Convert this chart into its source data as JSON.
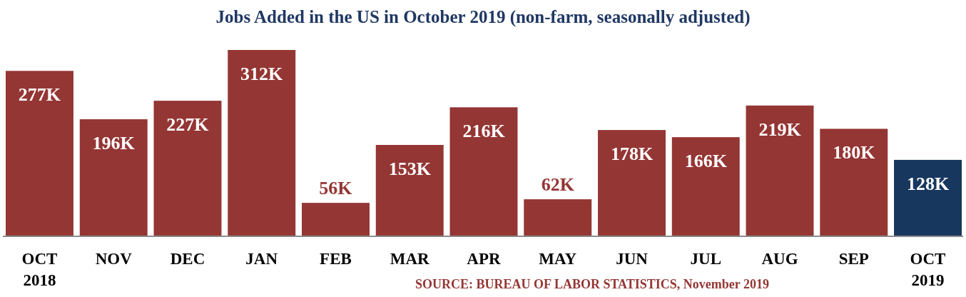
{
  "chart_data": {
    "type": "bar",
    "title": "Jobs Added in the US in October 2019 (non-farm, seasonally adjusted)",
    "categories": [
      "OCT\n2018",
      "NOV",
      "DEC",
      "JAN",
      "FEB",
      "MAR",
      "APR",
      "MAY",
      "JUN",
      "JUL",
      "AUG",
      "SEP",
      "OCT\n2019"
    ],
    "values": [
      277,
      196,
      227,
      312,
      56,
      153,
      216,
      62,
      178,
      166,
      219,
      180,
      128
    ],
    "colors": [
      "#943634",
      "#943634",
      "#943634",
      "#943634",
      "#943634",
      "#943634",
      "#943634",
      "#943634",
      "#943634",
      "#943634",
      "#943634",
      "#943634",
      "#17375e"
    ],
    "value_labels": [
      "277K",
      "196K",
      "227K",
      "312K",
      "56K",
      "153K",
      "216K",
      "62K",
      "178K",
      "166K",
      "219K",
      "180K",
      "128K"
    ],
    "annotations": [
      "SOURCE: BUREAU OF LABOR STATISTICS, November 2019"
    ]
  }
}
